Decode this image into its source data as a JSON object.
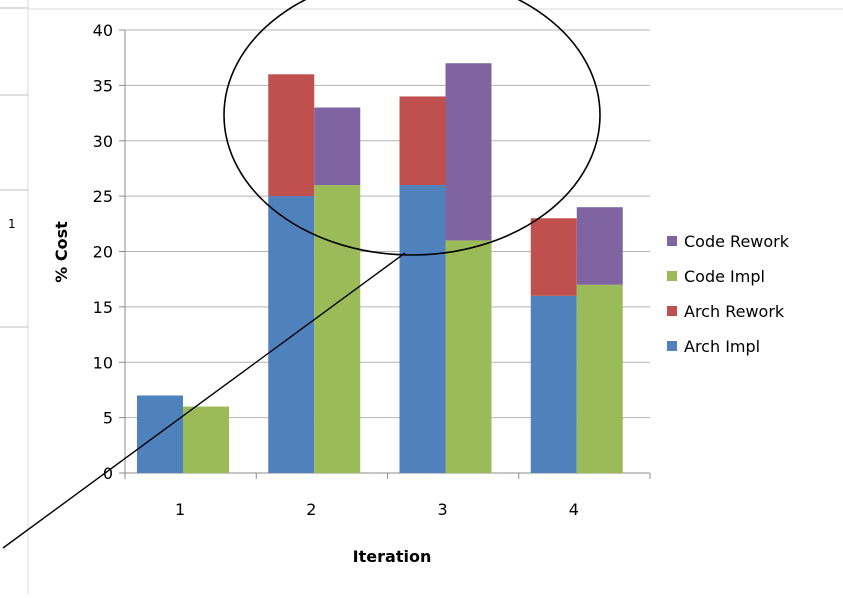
{
  "chart_data": {
    "type": "bar",
    "stacked": true,
    "grouped": true,
    "xlabel": "Iteration",
    "ylabel": "% Cost",
    "ylim": [
      0,
      40
    ],
    "yticks": [
      0,
      5,
      10,
      15,
      20,
      25,
      30,
      35,
      40
    ],
    "grid": true,
    "legend_position": "right",
    "categories": [
      "1",
      "2",
      "3",
      "4"
    ],
    "series": [
      {
        "name": "Arch Impl",
        "group": "arch",
        "color": "#4f81bd",
        "values": [
          7,
          25,
          26,
          16
        ]
      },
      {
        "name": "Arch Rework",
        "group": "arch",
        "color": "#c0504d",
        "values": [
          0,
          11,
          8,
          7
        ]
      },
      {
        "name": "Code Impl",
        "group": "code",
        "color": "#9bbb59",
        "values": [
          6,
          26,
          21,
          17
        ]
      },
      {
        "name": "Code Rework",
        "group": "code",
        "color": "#8064a2",
        "values": [
          0,
          7,
          16,
          7
        ]
      }
    ],
    "legend_order": [
      "Code Rework",
      "Code Impl",
      "Arch Rework",
      "Arch Impl"
    ],
    "annotations": [
      {
        "type": "ellipse-highlight",
        "covers_categories": [
          "2",
          "3"
        ]
      },
      {
        "type": "leader-line",
        "from": "left-edge"
      }
    ],
    "side_marker_text": "1"
  }
}
